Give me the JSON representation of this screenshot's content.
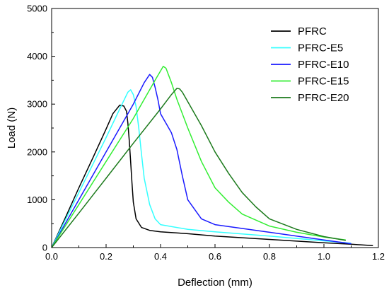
{
  "chart_data": {
    "type": "line",
    "title": "",
    "xlabel": "Deflection (mm)",
    "ylabel": "Load (N)",
    "xlim": [
      0,
      1.2
    ],
    "ylim": [
      0,
      5000
    ],
    "xticks": [
      0.0,
      0.2,
      0.4,
      0.6,
      0.8,
      1.0,
      1.2
    ],
    "xtick_labels": [
      "0.0",
      "0.2",
      "0.4",
      "0.6",
      "0.8",
      "1.0",
      "1.2"
    ],
    "yticks": [
      0,
      1000,
      2000,
      3000,
      4000,
      5000
    ],
    "ytick_labels": [
      "0",
      "1000",
      "2000",
      "3000",
      "4000",
      "5000"
    ],
    "grid": false,
    "legend_position": "top-right",
    "series": [
      {
        "name": "PFRC",
        "color": "#000000",
        "x": [
          0,
          0.05,
          0.1,
          0.15,
          0.2,
          0.225,
          0.25,
          0.265,
          0.275,
          0.28,
          0.285,
          0.29,
          0.295,
          0.3,
          0.31,
          0.33,
          0.36,
          0.4,
          0.5,
          0.6,
          0.8,
          1.0,
          1.1,
          1.18
        ],
        "y": [
          0,
          620,
          1250,
          1860,
          2480,
          2800,
          2980,
          2960,
          2850,
          2600,
          2250,
          1800,
          1350,
          950,
          600,
          420,
          360,
          330,
          290,
          240,
          170,
          100,
          70,
          40
        ]
      },
      {
        "name": "PFRC-E5",
        "color": "#33ffff",
        "x": [
          0,
          0.1,
          0.2,
          0.25,
          0.28,
          0.29,
          0.3,
          0.31,
          0.32,
          0.33,
          0.34,
          0.36,
          0.38,
          0.4,
          0.5,
          0.6,
          0.8,
          1.0,
          1.1
        ],
        "y": [
          0,
          1150,
          2300,
          2900,
          3250,
          3300,
          3200,
          2950,
          2500,
          1950,
          1450,
          900,
          600,
          480,
          380,
          330,
          240,
          140,
          90
        ]
      },
      {
        "name": "PFRC-E10",
        "color": "#1a1aff",
        "x": [
          0,
          0.1,
          0.2,
          0.3,
          0.34,
          0.36,
          0.37,
          0.38,
          0.39,
          0.4,
          0.41,
          0.42,
          0.44,
          0.46,
          0.48,
          0.5,
          0.55,
          0.6,
          0.7,
          0.8,
          1.0,
          1.1
        ],
        "y": [
          0,
          1000,
          2000,
          3000,
          3450,
          3620,
          3560,
          3350,
          3100,
          2800,
          2700,
          2600,
          2400,
          2050,
          1500,
          1000,
          600,
          480,
          400,
          320,
          160,
          80
        ]
      },
      {
        "name": "PFRC-E15",
        "color": "#33ee33",
        "x": [
          0,
          0.1,
          0.2,
          0.3,
          0.38,
          0.41,
          0.42,
          0.44,
          0.46,
          0.5,
          0.55,
          0.6,
          0.65,
          0.7,
          0.8,
          0.9,
          1.0,
          1.08
        ],
        "y": [
          0,
          900,
          1800,
          2700,
          3500,
          3790,
          3750,
          3450,
          3100,
          2500,
          1800,
          1250,
          950,
          700,
          450,
          320,
          220,
          160
        ]
      },
      {
        "name": "PFRC-E20",
        "color": "#1c7a1c",
        "x": [
          0,
          0.1,
          0.2,
          0.3,
          0.4,
          0.44,
          0.46,
          0.47,
          0.48,
          0.5,
          0.55,
          0.6,
          0.65,
          0.7,
          0.75,
          0.8,
          0.9,
          1.0,
          1.08
        ],
        "y": [
          0,
          720,
          1450,
          2180,
          2900,
          3200,
          3330,
          3320,
          3250,
          3050,
          2550,
          2000,
          1550,
          1150,
          850,
          600,
          380,
          230,
          150
        ]
      }
    ]
  }
}
